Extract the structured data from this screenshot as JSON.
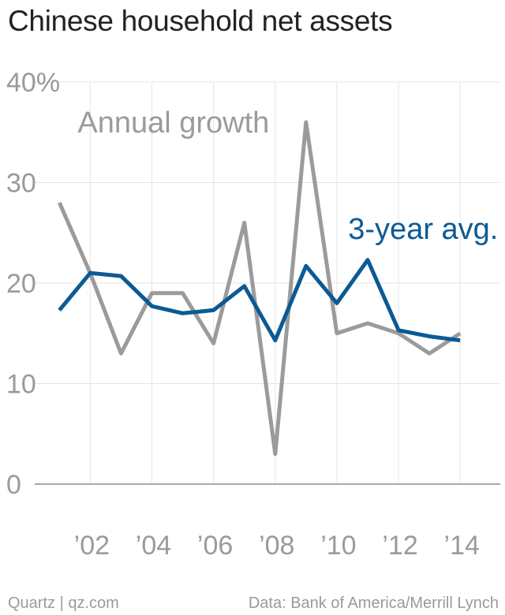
{
  "title": "Chinese household net assets",
  "footer": {
    "credit": "Quartz | qz.com",
    "source": "Data: Bank of America/Merrill Lynch"
  },
  "colors": {
    "annual": "#9b9b9b",
    "avg": "#0b5a94",
    "grid": "#e6e6e6",
    "axis": "#8c8c8c",
    "tick_text": "#9a9a9a"
  },
  "chart_data": {
    "type": "line",
    "title": "Chinese household net assets",
    "xlim": [
      2000.2,
      2015.3
    ],
    "ylim": [
      0,
      40
    ],
    "grid": true,
    "x_ticks": [
      {
        "value": 2002,
        "label": "’02"
      },
      {
        "value": 2004,
        "label": "’04"
      },
      {
        "value": 2006,
        "label": "’06"
      },
      {
        "value": 2008,
        "label": "’08"
      },
      {
        "value": 2010,
        "label": "’10"
      },
      {
        "value": 2012,
        "label": "’12"
      },
      {
        "value": 2014,
        "label": "’14"
      }
    ],
    "y_ticks": [
      {
        "value": 0,
        "label": "0"
      },
      {
        "value": 10,
        "label": "10"
      },
      {
        "value": 20,
        "label": "20"
      },
      {
        "value": 30,
        "label": "30"
      },
      {
        "value": 40,
        "label": "40%"
      }
    ],
    "x": [
      2001,
      2002,
      2003,
      2004,
      2005,
      2006,
      2007,
      2008,
      2009,
      2010,
      2011,
      2012,
      2013,
      2014
    ],
    "series": [
      {
        "name": "Annual growth",
        "color": "#9b9b9b",
        "values": [
          28,
          21,
          13,
          19,
          19,
          14,
          26,
          3,
          36,
          15,
          16,
          15,
          13,
          15
        ]
      },
      {
        "name": "3-year avg.",
        "color": "#0b5a94",
        "values": [
          17.3,
          21,
          20.7,
          17.7,
          17,
          17.3,
          19.7,
          14.3,
          21.7,
          18,
          22.3,
          15.3,
          14.7,
          14.3
        ]
      }
    ],
    "annotations": [
      {
        "text": "Annual growth",
        "series": 0,
        "x": 2004.7,
        "y": 35
      },
      {
        "text": "3-year avg.",
        "series": 1,
        "x": 2012.8,
        "y": 24.4
      }
    ]
  }
}
